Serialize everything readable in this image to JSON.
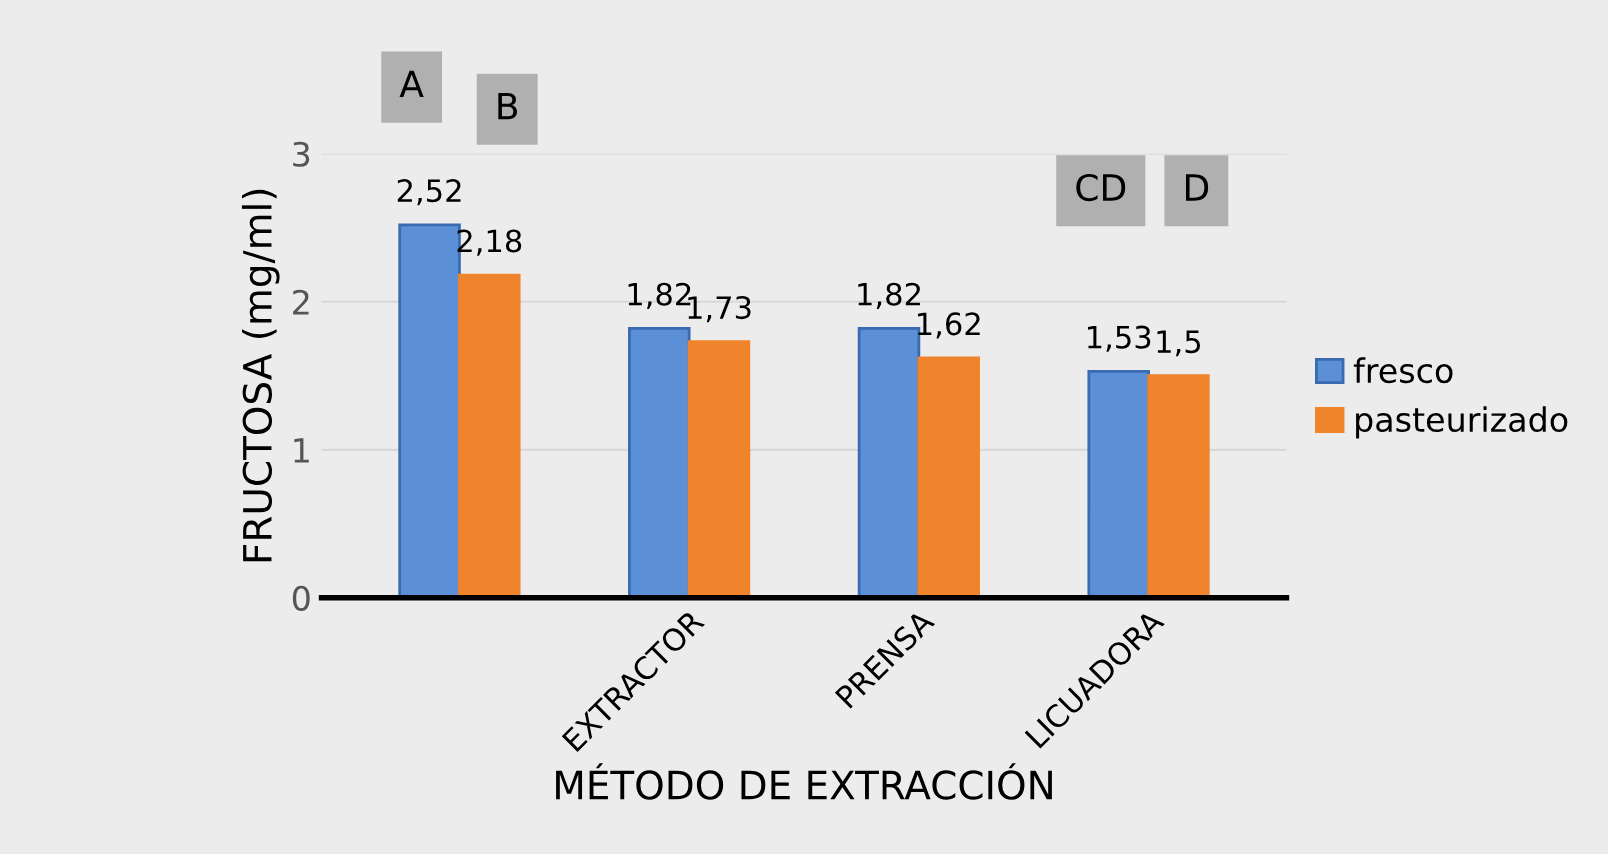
{
  "chart_data": {
    "type": "bar",
    "xlabel": "MÉTODO DE EXTRACCIÓN",
    "ylabel": "FRUCTOSA (mg/ml)",
    "categories": [
      null,
      "EXTRACTOR",
      "PRENSA",
      "LICUADORA"
    ],
    "series": [
      {
        "name": "fresco",
        "color": "#5b8fd6",
        "values": [
          2.52,
          1.82,
          1.82,
          1.53
        ],
        "value_labels": [
          "2,52",
          "1,82",
          "1,82",
          "1,53"
        ]
      },
      {
        "name": "pasteurizado",
        "color": "#f0842c",
        "values": [
          2.18,
          1.73,
          1.62,
          1.5
        ],
        "value_labels": [
          "2,18",
          "1,73",
          "1,62",
          "1,5"
        ]
      }
    ],
    "annotations": [
      "A",
      "B",
      "CD",
      "D"
    ],
    "ylim": [
      0,
      3
    ],
    "yticks": [
      0,
      1,
      2,
      3
    ],
    "grid": "y",
    "legend": "right"
  }
}
